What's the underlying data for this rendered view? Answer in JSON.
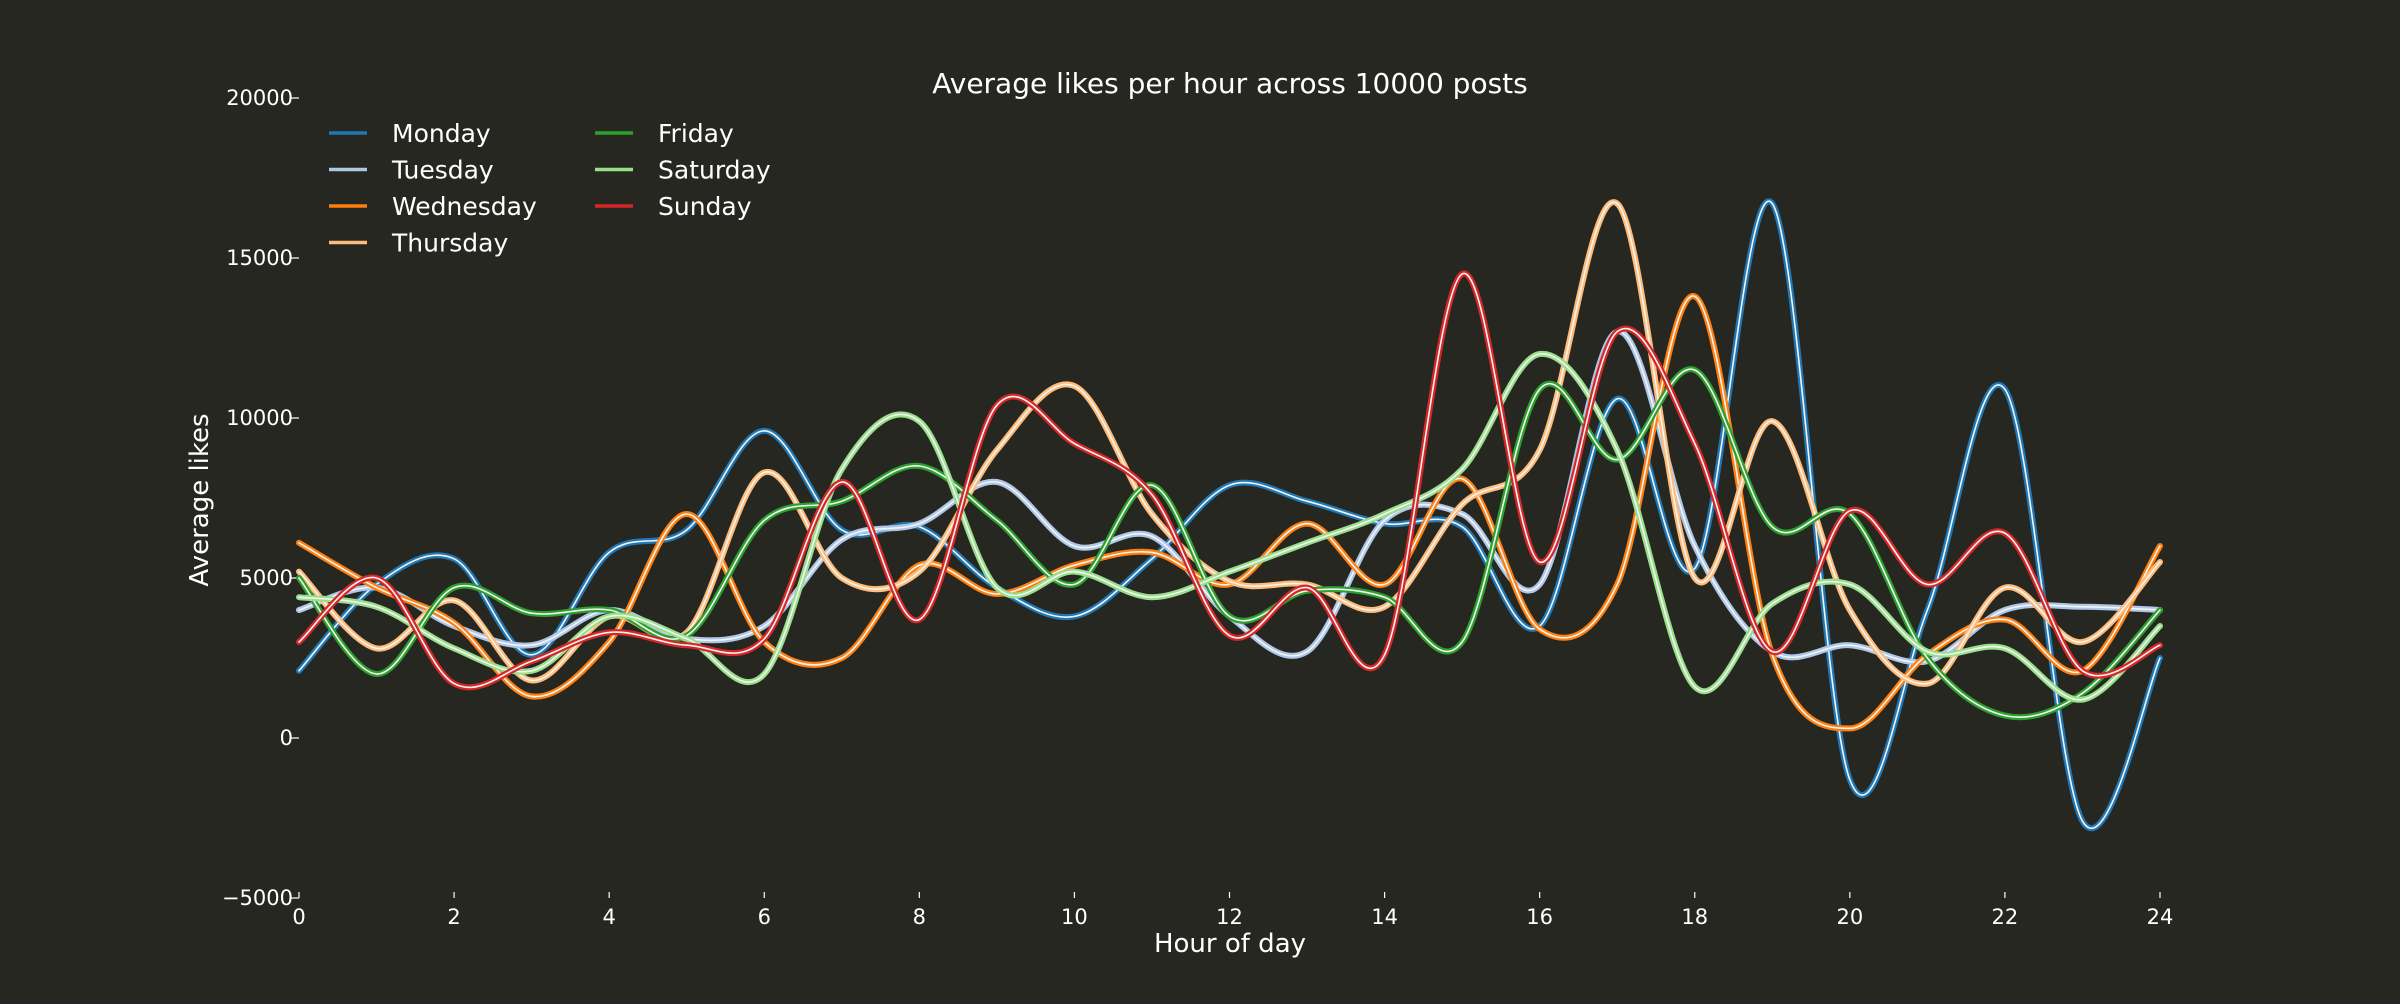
{
  "chart_data": {
    "type": "line",
    "title": "Average likes per hour across 10000 posts",
    "xlabel": "Hour of day",
    "ylabel": "Average likes",
    "xlim": [
      0,
      24
    ],
    "ylim": [
      -5000,
      20000
    ],
    "xticks": [
      0,
      2,
      4,
      6,
      8,
      10,
      12,
      14,
      16,
      18,
      20,
      22,
      24
    ],
    "xtick_labels": [
      "0",
      "2",
      "4",
      "6",
      "8",
      "10",
      "12",
      "14",
      "16",
      "18",
      "20",
      "22",
      "24"
    ],
    "yticks": [
      -5000,
      0,
      5000,
      10000,
      15000,
      20000
    ],
    "ytick_labels": [
      "−5000",
      "0",
      "5000",
      "10000",
      "15000",
      "20000"
    ],
    "grid": false,
    "legend_position": "top-left",
    "background": "#272722",
    "x": [
      0,
      1,
      2,
      3,
      4,
      5,
      6,
      7,
      8,
      9,
      10,
      11,
      12,
      13,
      14,
      15,
      16,
      17,
      18,
      19,
      20,
      21,
      22,
      23,
      24
    ],
    "series": [
      {
        "name": "Monday",
        "color": "#1f77b4",
        "values": [
          2100,
          4800,
          5600,
          2600,
          5800,
          6500,
          9600,
          6500,
          6600,
          4700,
          3800,
          5600,
          7900,
          7400,
          6700,
          6600,
          3500,
          10600,
          5300,
          16700,
          -1300,
          4000,
          10900,
          -2600,
          2500
        ]
      },
      {
        "name": "Tuesday",
        "color": "#aec7e8",
        "values": [
          4000,
          4700,
          3500,
          2900,
          4000,
          3100,
          3500,
          6200,
          6700,
          8000,
          6000,
          6300,
          3800,
          2700,
          6800,
          7000,
          4800,
          12700,
          6000,
          2700,
          2900,
          2400,
          4000,
          4100,
          4000
        ]
      },
      {
        "name": "Wednesday",
        "color": "#ff7f0e",
        "values": [
          6100,
          4700,
          3600,
          1300,
          3000,
          7000,
          3000,
          2500,
          5400,
          4500,
          5400,
          5800,
          4800,
          6700,
          4800,
          8100,
          3400,
          4800,
          13800,
          2600,
          300,
          2600,
          3700,
          2100,
          6000
        ]
      },
      {
        "name": "Thursday",
        "color": "#ffbb78",
        "values": [
          5200,
          2800,
          4300,
          1800,
          3800,
          3300,
          8300,
          5000,
          5200,
          9000,
          11000,
          7000,
          4900,
          4800,
          4100,
          7300,
          9000,
          16700,
          5000,
          9900,
          4000,
          1700,
          4700,
          3000,
          5500
        ]
      },
      {
        "name": "Friday",
        "color": "#2ca02c",
        "values": [
          5000,
          2000,
          4700,
          3900,
          4000,
          3200,
          6800,
          7400,
          8500,
          6800,
          4800,
          7900,
          3800,
          4600,
          4400,
          3000,
          10900,
          8700,
          11500,
          6600,
          7000,
          2500,
          700,
          1400,
          4000
        ]
      },
      {
        "name": "Saturday",
        "color": "#98df8a",
        "values": [
          4400,
          4100,
          2800,
          2100,
          3800,
          3100,
          2000,
          8400,
          9900,
          4700,
          5200,
          4400,
          5200,
          6100,
          7000,
          8400,
          12000,
          9000,
          1600,
          4200,
          4800,
          2700,
          2800,
          1200,
          3500
        ]
      },
      {
        "name": "Sunday",
        "color": "#d62728",
        "values": [
          3000,
          5000,
          1700,
          2400,
          3300,
          2900,
          3100,
          8000,
          3700,
          10400,
          9200,
          7600,
          3200,
          4700,
          2600,
          14500,
          5500,
          12700,
          9200,
          2700,
          7100,
          4800,
          6400,
          2100,
          2900
        ]
      }
    ]
  }
}
